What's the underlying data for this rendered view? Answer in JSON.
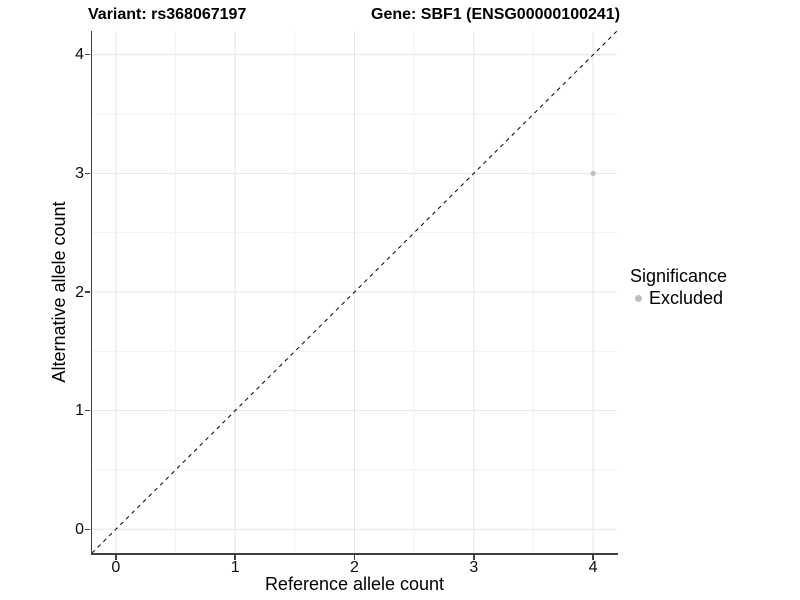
{
  "chart_data": {
    "type": "scatter",
    "title_left": "Variant: rs368067197",
    "title_right": "Gene: SBF1 (ENSG00000100241)",
    "xlabel": "Reference allele count",
    "ylabel": "Alternative allele count",
    "xlim": [
      -0.2,
      4.2
    ],
    "ylim": [
      -0.2,
      4.2
    ],
    "x_ticks": [
      0,
      1,
      2,
      3,
      4
    ],
    "y_ticks": [
      0,
      1,
      2,
      3,
      4
    ],
    "x_minor_ticks": [
      0.5,
      1.5,
      2.5,
      3.5
    ],
    "y_minor_ticks": [
      0.5,
      1.5,
      2.5,
      3.5
    ],
    "grid": true,
    "grid_major_color": "#e4e4e4",
    "grid_minor_color": "#f2f2f2",
    "series": [
      {
        "name": "Excluded",
        "color": "#bdbdbd",
        "point_radius": 2.5,
        "points": [
          [
            4,
            3
          ]
        ]
      }
    ],
    "reference_line": {
      "type": "identity",
      "style": "dashed",
      "color": "#000000",
      "from": [
        -0.2,
        -0.2
      ],
      "to": [
        4.2,
        4.2
      ]
    },
    "legend": {
      "title": "Significance",
      "position": "right",
      "items": [
        {
          "label": "Excluded",
          "color": "#bdbdbd"
        }
      ]
    }
  }
}
